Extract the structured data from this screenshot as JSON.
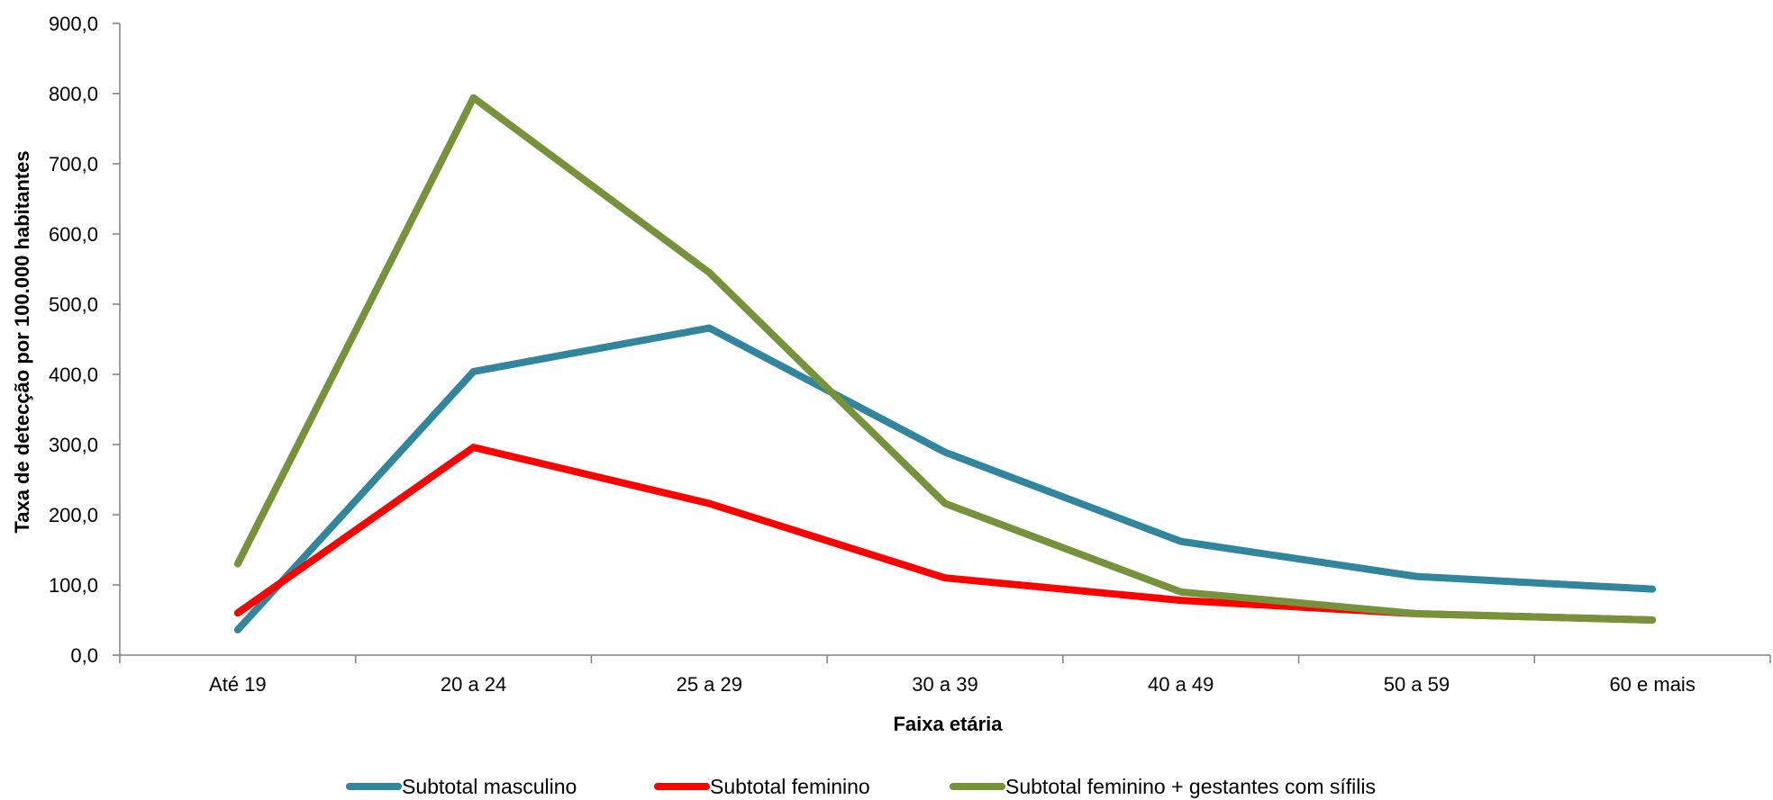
{
  "chart_data": {
    "type": "line",
    "title": "",
    "xlabel": "Faixa etária",
    "ylabel": "Taxa de detecção por 100.000 habitantes",
    "categories": [
      "Até 19",
      "20 a 24",
      "25 a 29",
      "30 a 39",
      "40 a 49",
      "50 a 59",
      "60 e mais"
    ],
    "ylim": [
      0,
      900
    ],
    "yticks": [
      "0,0",
      "100,0",
      "200,0",
      "300,0",
      "400,0",
      "500,0",
      "600,0",
      "700,0",
      "800,0",
      "900,0"
    ],
    "grid": false,
    "legend_position": "bottom",
    "series": [
      {
        "name": "Subtotal masculino",
        "color": "#31859C",
        "values": [
          36,
          404,
          466,
          289,
          162,
          112,
          94
        ]
      },
      {
        "name": "Subtotal feminino",
        "color": "#FF0000",
        "values": [
          60,
          296,
          216,
          110,
          78,
          59,
          50
        ]
      },
      {
        "name": "Subtotal feminino + gestantes com sífilis",
        "color": "#76933C",
        "values": [
          130,
          794,
          545,
          216,
          90,
          59,
          50
        ]
      }
    ]
  }
}
